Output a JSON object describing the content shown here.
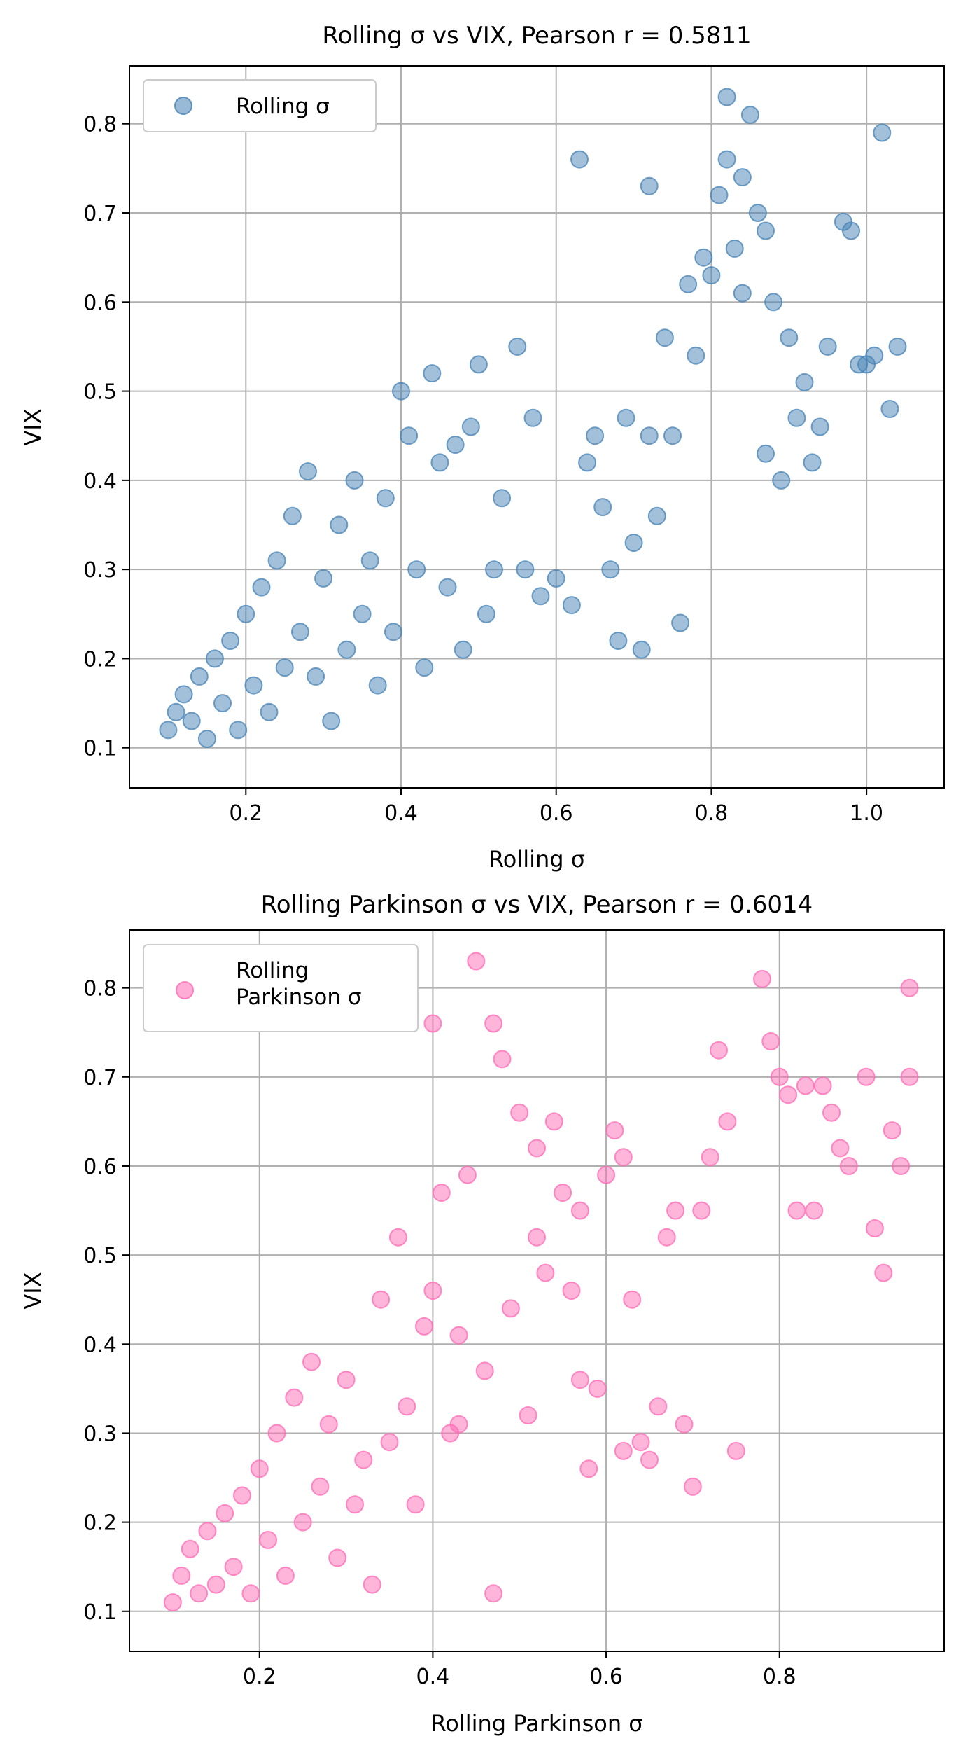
{
  "chart_data": [
    {
      "type": "scatter",
      "title": "Rolling σ vs VIX, Pearson r = 0.5811",
      "xlabel": "Rolling σ",
      "ylabel": "VIX",
      "xlim": [
        0.05,
        1.1
      ],
      "ylim": [
        0.055,
        0.865
      ],
      "xticks": [
        "0.2",
        "0.4",
        "0.6",
        "0.8",
        "1.0"
      ],
      "yticks": [
        "0.1",
        "0.2",
        "0.3",
        "0.4",
        "0.5",
        "0.6",
        "0.7",
        "0.8"
      ],
      "grid": true,
      "legend_position": "top-left",
      "series": [
        {
          "name": "Rolling σ",
          "color": "#4682b4",
          "points": [
            [
              0.1,
              0.12
            ],
            [
              0.11,
              0.14
            ],
            [
              0.12,
              0.16
            ],
            [
              0.13,
              0.13
            ],
            [
              0.14,
              0.18
            ],
            [
              0.15,
              0.11
            ],
            [
              0.16,
              0.2
            ],
            [
              0.17,
              0.15
            ],
            [
              0.18,
              0.22
            ],
            [
              0.19,
              0.12
            ],
            [
              0.2,
              0.25
            ],
            [
              0.21,
              0.17
            ],
            [
              0.22,
              0.28
            ],
            [
              0.23,
              0.14
            ],
            [
              0.24,
              0.31
            ],
            [
              0.25,
              0.19
            ],
            [
              0.26,
              0.36
            ],
            [
              0.27,
              0.23
            ],
            [
              0.28,
              0.41
            ],
            [
              0.29,
              0.18
            ],
            [
              0.3,
              0.29
            ],
            [
              0.31,
              0.13
            ],
            [
              0.32,
              0.35
            ],
            [
              0.33,
              0.21
            ],
            [
              0.34,
              0.4
            ],
            [
              0.35,
              0.25
            ],
            [
              0.36,
              0.31
            ],
            [
              0.37,
              0.17
            ],
            [
              0.38,
              0.38
            ],
            [
              0.39,
              0.23
            ],
            [
              0.4,
              0.5
            ],
            [
              0.41,
              0.45
            ],
            [
              0.42,
              0.3
            ],
            [
              0.43,
              0.19
            ],
            [
              0.44,
              0.52
            ],
            [
              0.45,
              0.42
            ],
            [
              0.46,
              0.28
            ],
            [
              0.47,
              0.44
            ],
            [
              0.48,
              0.21
            ],
            [
              0.49,
              0.46
            ],
            [
              0.5,
              0.53
            ],
            [
              0.51,
              0.25
            ],
            [
              0.52,
              0.3
            ],
            [
              0.53,
              0.38
            ],
            [
              0.55,
              0.55
            ],
            [
              0.56,
              0.3
            ],
            [
              0.57,
              0.47
            ],
            [
              0.58,
              0.27
            ],
            [
              0.6,
              0.29
            ],
            [
              0.62,
              0.26
            ],
            [
              0.64,
              0.42
            ],
            [
              0.65,
              0.45
            ],
            [
              0.66,
              0.37
            ],
            [
              0.67,
              0.3
            ],
            [
              0.68,
              0.22
            ],
            [
              0.69,
              0.47
            ],
            [
              0.7,
              0.33
            ],
            [
              0.71,
              0.21
            ],
            [
              0.72,
              0.45
            ],
            [
              0.73,
              0.36
            ],
            [
              0.74,
              0.56
            ],
            [
              0.75,
              0.45
            ],
            [
              0.76,
              0.24
            ],
            [
              0.77,
              0.62
            ],
            [
              0.78,
              0.54
            ],
            [
              0.79,
              0.65
            ],
            [
              0.8,
              0.63
            ],
            [
              0.81,
              0.72
            ],
            [
              0.82,
              0.76
            ],
            [
              0.83,
              0.66
            ],
            [
              0.84,
              0.61
            ],
            [
              0.85,
              0.81
            ],
            [
              0.86,
              0.7
            ],
            [
              0.87,
              0.43
            ],
            [
              0.88,
              0.6
            ],
            [
              0.89,
              0.4
            ],
            [
              0.9,
              0.56
            ],
            [
              0.91,
              0.47
            ],
            [
              0.92,
              0.51
            ],
            [
              0.93,
              0.42
            ],
            [
              0.94,
              0.46
            ],
            [
              0.95,
              0.55
            ],
            [
              0.97,
              0.69
            ],
            [
              0.98,
              0.68
            ],
            [
              0.99,
              0.53
            ],
            [
              1.0,
              0.53
            ],
            [
              1.01,
              0.54
            ],
            [
              1.02,
              0.79
            ],
            [
              1.03,
              0.48
            ],
            [
              1.04,
              0.55
            ],
            [
              0.63,
              0.76
            ],
            [
              0.72,
              0.73
            ],
            [
              0.82,
              0.83
            ],
            [
              0.84,
              0.74
            ],
            [
              0.87,
              0.68
            ]
          ]
        }
      ]
    },
    {
      "type": "scatter",
      "title": "Rolling Parkinson σ vs VIX, Pearson r = 0.6014",
      "xlabel": "Rolling Parkinson σ",
      "ylabel": "VIX",
      "xlim": [
        0.05,
        0.99
      ],
      "ylim": [
        0.055,
        0.865
      ],
      "xticks": [
        "0.2",
        "0.4",
        "0.6",
        "0.8"
      ],
      "yticks": [
        "0.1",
        "0.2",
        "0.3",
        "0.4",
        "0.5",
        "0.6",
        "0.7",
        "0.8"
      ],
      "grid": true,
      "legend_position": "top-left",
      "series": [
        {
          "name": "Rolling\nParkinson σ",
          "color": "#ff69b4",
          "points": [
            [
              0.1,
              0.11
            ],
            [
              0.11,
              0.14
            ],
            [
              0.12,
              0.17
            ],
            [
              0.13,
              0.12
            ],
            [
              0.14,
              0.19
            ],
            [
              0.15,
              0.13
            ],
            [
              0.16,
              0.21
            ],
            [
              0.17,
              0.15
            ],
            [
              0.18,
              0.23
            ],
            [
              0.19,
              0.12
            ],
            [
              0.2,
              0.26
            ],
            [
              0.21,
              0.18
            ],
            [
              0.22,
              0.3
            ],
            [
              0.23,
              0.14
            ],
            [
              0.24,
              0.34
            ],
            [
              0.25,
              0.2
            ],
            [
              0.26,
              0.38
            ],
            [
              0.27,
              0.24
            ],
            [
              0.28,
              0.31
            ],
            [
              0.29,
              0.16
            ],
            [
              0.3,
              0.36
            ],
            [
              0.31,
              0.22
            ],
            [
              0.32,
              0.27
            ],
            [
              0.33,
              0.13
            ],
            [
              0.34,
              0.45
            ],
            [
              0.35,
              0.29
            ],
            [
              0.36,
              0.52
            ],
            [
              0.37,
              0.33
            ],
            [
              0.38,
              0.22
            ],
            [
              0.39,
              0.42
            ],
            [
              0.4,
              0.46
            ],
            [
              0.41,
              0.57
            ],
            [
              0.42,
              0.3
            ],
            [
              0.43,
              0.41
            ],
            [
              0.44,
              0.59
            ],
            [
              0.45,
              0.83
            ],
            [
              0.46,
              0.37
            ],
            [
              0.47,
              0.76
            ],
            [
              0.48,
              0.72
            ],
            [
              0.49,
              0.44
            ],
            [
              0.5,
              0.66
            ],
            [
              0.51,
              0.32
            ],
            [
              0.52,
              0.62
            ],
            [
              0.53,
              0.48
            ],
            [
              0.54,
              0.65
            ],
            [
              0.55,
              0.57
            ],
            [
              0.56,
              0.46
            ],
            [
              0.57,
              0.55
            ],
            [
              0.58,
              0.26
            ],
            [
              0.59,
              0.35
            ],
            [
              0.6,
              0.59
            ],
            [
              0.61,
              0.64
            ],
            [
              0.62,
              0.61
            ],
            [
              0.63,
              0.45
            ],
            [
              0.64,
              0.29
            ],
            [
              0.65,
              0.27
            ],
            [
              0.66,
              0.33
            ],
            [
              0.67,
              0.52
            ],
            [
              0.68,
              0.55
            ],
            [
              0.69,
              0.31
            ],
            [
              0.7,
              0.24
            ],
            [
              0.71,
              0.55
            ],
            [
              0.72,
              0.61
            ],
            [
              0.73,
              0.73
            ],
            [
              0.74,
              0.65
            ],
            [
              0.75,
              0.28
            ],
            [
              0.78,
              0.81
            ],
            [
              0.79,
              0.74
            ],
            [
              0.8,
              0.7
            ],
            [
              0.81,
              0.68
            ],
            [
              0.82,
              0.55
            ],
            [
              0.83,
              0.69
            ],
            [
              0.84,
              0.55
            ],
            [
              0.85,
              0.69
            ],
            [
              0.86,
              0.66
            ],
            [
              0.87,
              0.62
            ],
            [
              0.88,
              0.6
            ],
            [
              0.9,
              0.7
            ],
            [
              0.91,
              0.53
            ],
            [
              0.92,
              0.48
            ],
            [
              0.93,
              0.64
            ],
            [
              0.94,
              0.6
            ],
            [
              0.95,
              0.8
            ],
            [
              0.95,
              0.7
            ],
            [
              0.4,
              0.76
            ],
            [
              0.47,
              0.12
            ],
            [
              0.43,
              0.31
            ],
            [
              0.52,
              0.52
            ],
            [
              0.57,
              0.36
            ],
            [
              0.62,
              0.28
            ]
          ]
        }
      ]
    }
  ]
}
